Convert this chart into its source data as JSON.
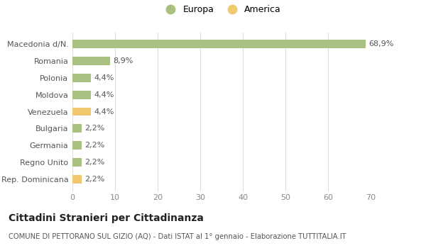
{
  "categories": [
    "Rep. Dominicana",
    "Regno Unito",
    "Germania",
    "Bulgaria",
    "Venezuela",
    "Moldova",
    "Polonia",
    "Romania",
    "Macedonia d/N."
  ],
  "values": [
    2.2,
    2.2,
    2.2,
    2.2,
    4.4,
    4.4,
    4.4,
    8.9,
    68.9
  ],
  "labels": [
    "2,2%",
    "2,2%",
    "2,2%",
    "2,2%",
    "4,4%",
    "4,4%",
    "4,4%",
    "8,9%",
    "68,9%"
  ],
  "colors": [
    "#f0c96e",
    "#a8c080",
    "#a8c080",
    "#a8c080",
    "#f0c96e",
    "#a8c080",
    "#a8c080",
    "#a8c080",
    "#a8c080"
  ],
  "europa_color": "#a8c080",
  "america_color": "#f0c96e",
  "title": "Cittadini Stranieri per Cittadinanza",
  "subtitle": "COMUNE DI PETTORANO SUL GIZIO (AQ) - Dati ISTAT al 1° gennaio - Elaborazione TUTTITALIA.IT",
  "xlim": [
    0,
    70
  ],
  "xticks": [
    0,
    10,
    20,
    30,
    40,
    50,
    60,
    70
  ],
  "background_color": "#ffffff",
  "grid_color": "#dddddd",
  "bar_height": 0.5
}
